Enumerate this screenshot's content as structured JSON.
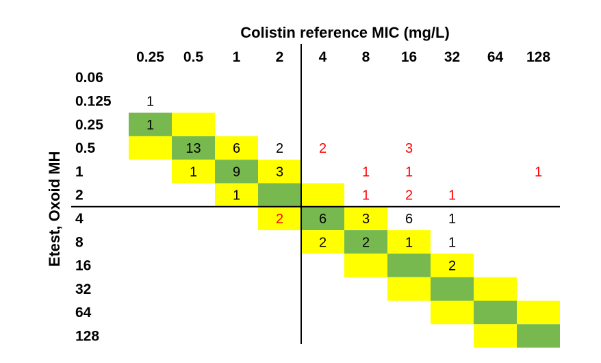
{
  "chart_data": {
    "type": "heatmap",
    "title": "Colistin reference MIC (mg/L)",
    "xlabel": "Colistin reference MIC (mg/L)",
    "ylabel": "Etest, Oxoid MH",
    "x_categories": [
      "0.25",
      "0.5",
      "1",
      "2",
      "4",
      "8",
      "16",
      "32",
      "64",
      "128"
    ],
    "y_categories": [
      "0.06",
      "0.125",
      "0.25",
      "0.5",
      "1",
      "2",
      "4",
      "8",
      "16",
      "32",
      "64",
      "128"
    ],
    "breakpoint": {
      "x_after": "2",
      "y_after": "2"
    },
    "colors": {
      "exact_agreement": "#77b94e",
      "essential_agreement": "#ffff00",
      "count_agree": "#000000",
      "count_error": "#ff0000",
      "lines": "#000000"
    },
    "cells": [
      {
        "x": "0.25",
        "y": "0.125",
        "value": 1,
        "shade": null,
        "error": false
      },
      {
        "x": "0.25",
        "y": "0.25",
        "value": 1,
        "shade": "exact",
        "error": false
      },
      {
        "x": "0.25",
        "y": "0.5",
        "value": null,
        "shade": "essential",
        "error": false
      },
      {
        "x": "0.5",
        "y": "0.25",
        "value": null,
        "shade": "essential",
        "error": false
      },
      {
        "x": "0.5",
        "y": "0.5",
        "value": 13,
        "shade": "exact",
        "error": false
      },
      {
        "x": "0.5",
        "y": "1",
        "value": 1,
        "shade": "essential",
        "error": false
      },
      {
        "x": "1",
        "y": "0.5",
        "value": 6,
        "shade": "essential",
        "error": false
      },
      {
        "x": "1",
        "y": "1",
        "value": 9,
        "shade": "exact",
        "error": false
      },
      {
        "x": "1",
        "y": "2",
        "value": 1,
        "shade": "essential",
        "error": false
      },
      {
        "x": "2",
        "y": "0.5",
        "value": 2,
        "shade": null,
        "error": false
      },
      {
        "x": "2",
        "y": "1",
        "value": 3,
        "shade": "essential",
        "error": false
      },
      {
        "x": "2",
        "y": "2",
        "value": null,
        "shade": "exact",
        "error": false
      },
      {
        "x": "2",
        "y": "4",
        "value": 2,
        "shade": "essential",
        "error": true
      },
      {
        "x": "4",
        "y": "0.5",
        "value": 2,
        "shade": null,
        "error": true
      },
      {
        "x": "4",
        "y": "2",
        "value": null,
        "shade": "essential",
        "error": false
      },
      {
        "x": "4",
        "y": "4",
        "value": 6,
        "shade": "exact",
        "error": false
      },
      {
        "x": "4",
        "y": "8",
        "value": 2,
        "shade": "essential",
        "error": false
      },
      {
        "x": "8",
        "y": "1",
        "value": 1,
        "shade": null,
        "error": true
      },
      {
        "x": "8",
        "y": "2",
        "value": 1,
        "shade": null,
        "error": true
      },
      {
        "x": "8",
        "y": "4",
        "value": 3,
        "shade": "essential",
        "error": false
      },
      {
        "x": "8",
        "y": "8",
        "value": 2,
        "shade": "exact",
        "error": false
      },
      {
        "x": "8",
        "y": "16",
        "value": null,
        "shade": "essential",
        "error": false
      },
      {
        "x": "16",
        "y": "0.5",
        "value": 3,
        "shade": null,
        "error": true
      },
      {
        "x": "16",
        "y": "1",
        "value": 1,
        "shade": null,
        "error": true
      },
      {
        "x": "16",
        "y": "2",
        "value": 2,
        "shade": null,
        "error": true
      },
      {
        "x": "16",
        "y": "4",
        "value": 6,
        "shade": null,
        "error": false
      },
      {
        "x": "16",
        "y": "8",
        "value": 1,
        "shade": "essential",
        "error": false
      },
      {
        "x": "16",
        "y": "16",
        "value": null,
        "shade": "exact",
        "error": false
      },
      {
        "x": "16",
        "y": "32",
        "value": null,
        "shade": "essential",
        "error": false
      },
      {
        "x": "32",
        "y": "2",
        "value": 1,
        "shade": null,
        "error": true
      },
      {
        "x": "32",
        "y": "4",
        "value": 1,
        "shade": null,
        "error": false
      },
      {
        "x": "32",
        "y": "8",
        "value": 1,
        "shade": null,
        "error": false
      },
      {
        "x": "32",
        "y": "16",
        "value": 2,
        "shade": "essential",
        "error": false
      },
      {
        "x": "32",
        "y": "32",
        "value": null,
        "shade": "exact",
        "error": false
      },
      {
        "x": "32",
        "y": "64",
        "value": null,
        "shade": "essential",
        "error": false
      },
      {
        "x": "64",
        "y": "32",
        "value": null,
        "shade": "essential",
        "error": false
      },
      {
        "x": "64",
        "y": "64",
        "value": null,
        "shade": "exact",
        "error": false
      },
      {
        "x": "64",
        "y": "128",
        "value": null,
        "shade": "essential",
        "error": false
      },
      {
        "x": "128",
        "y": "1",
        "value": 1,
        "shade": null,
        "error": true
      },
      {
        "x": "128",
        "y": "64",
        "value": null,
        "shade": "essential",
        "error": false
      },
      {
        "x": "128",
        "y": "128",
        "value": null,
        "shade": "exact",
        "error": false
      }
    ]
  }
}
